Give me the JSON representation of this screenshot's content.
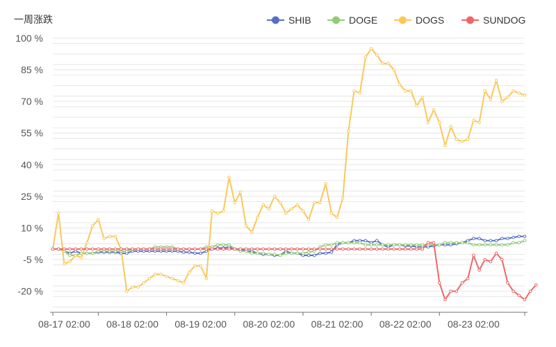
{
  "chart_data": {
    "type": "line",
    "y_axis_label": "一周涨跌",
    "y_ticks": [
      {
        "value": 100,
        "label": "100 %"
      },
      {
        "value": 85,
        "label": "85 %"
      },
      {
        "value": 70,
        "label": "70 %"
      },
      {
        "value": 55,
        "label": "55 %"
      },
      {
        "value": 40,
        "label": "40 %"
      },
      {
        "value": 25,
        "label": "25 %"
      },
      {
        "value": 10,
        "label": "10 %"
      },
      {
        "value": -5,
        "label": "-5 %"
      },
      {
        "value": -20,
        "label": "-20 %"
      }
    ],
    "ylim": [
      -30,
      100
    ],
    "x_tick_labels": [
      "08-17 02:00",
      "08-18 02:00",
      "08-19 02:00",
      "08-20 02:00",
      "08-21 02:00",
      "08-22 02:00",
      "08-23 02:00"
    ],
    "x_tick_index": [
      2,
      14,
      26,
      38,
      50,
      62,
      74
    ],
    "x_boundary_index": [
      8,
      20,
      32,
      44,
      56,
      68
    ],
    "point_count": 84,
    "grid": true,
    "legend_position": "top-right",
    "series": [
      {
        "name": "SHIB",
        "color": "#5470c6",
        "values": [
          0,
          0,
          -1,
          -2,
          -1,
          -2,
          -2,
          -2,
          -1.5,
          -1.5,
          -1.5,
          -1.5,
          -2,
          -2,
          -1,
          -1,
          -1,
          -1,
          -1,
          -1,
          -1,
          -1,
          -1,
          -1.5,
          -1.5,
          -2,
          -2,
          -1,
          0,
          0.5,
          0.5,
          1,
          0,
          0,
          -1,
          -1,
          -2,
          -2.5,
          -2.5,
          -3,
          -3,
          -1,
          -2,
          -2,
          -3,
          -3,
          -3,
          -2,
          -2,
          -1.5,
          2,
          3,
          3,
          4,
          4,
          4,
          3,
          4,
          2,
          1,
          2,
          2,
          1.5,
          1.5,
          1,
          1,
          1,
          1.5,
          2,
          2,
          2,
          2.5,
          3,
          4,
          5,
          5,
          4,
          4,
          4,
          5,
          5,
          5.5,
          6,
          6
        ]
      },
      {
        "name": "DOGE",
        "color": "#91cc75",
        "values": [
          0,
          0,
          -1,
          -3,
          -3,
          -2,
          -2,
          -2,
          -1,
          -1,
          -1,
          -1,
          -1,
          -1,
          0,
          0,
          0,
          0,
          1,
          1,
          1,
          1,
          0,
          0,
          0,
          0,
          0,
          1,
          1,
          2,
          2,
          2,
          0,
          -1,
          -1,
          -2,
          -2,
          -2,
          -2.5,
          -2.5,
          -3,
          -2,
          -2,
          -2,
          -2,
          -1.5,
          -1,
          1,
          2,
          2,
          3,
          3,
          3,
          3,
          3,
          2,
          2,
          2,
          2,
          2,
          2,
          2,
          2,
          2,
          2,
          2,
          2,
          2,
          2,
          3,
          3,
          3,
          3,
          3,
          2,
          2,
          2,
          2,
          2,
          2,
          2,
          3,
          3,
          4
        ]
      },
      {
        "name": "DOGS",
        "color": "#fac858",
        "values": [
          0,
          17,
          -7,
          -6,
          -3,
          -4,
          3,
          11,
          14,
          5,
          6,
          6,
          0,
          -20,
          -18,
          -18,
          -16,
          -14,
          -12,
          -12,
          -13,
          -14,
          -15,
          -16,
          -11,
          -8,
          -8,
          -14,
          18,
          17,
          18,
          34,
          22,
          27,
          11,
          8,
          15,
          21,
          19,
          25,
          22,
          17,
          19,
          21,
          18,
          14,
          22,
          22,
          31,
          17,
          15,
          24,
          56,
          75,
          74,
          91,
          95,
          92,
          88,
          88,
          85,
          78,
          75,
          75,
          68,
          72,
          60,
          66,
          60,
          49,
          58,
          52,
          51,
          52,
          61,
          60,
          75,
          71,
          80,
          70,
          72,
          75,
          74,
          73
        ]
      },
      {
        "name": "SUNDOG",
        "color": "#ee6666",
        "values": [
          0,
          0,
          0,
          0,
          0,
          0,
          0,
          0,
          0,
          0,
          0,
          0,
          0,
          0,
          0,
          0,
          0,
          0,
          0,
          0,
          0,
          0,
          0,
          0,
          0,
          0,
          0,
          0,
          0,
          0,
          0,
          0,
          0,
          0,
          0,
          0,
          0,
          0,
          0,
          0,
          0,
          0,
          0,
          0,
          0,
          0,
          0,
          0,
          0,
          0,
          0,
          0,
          0,
          0,
          0,
          0,
          0,
          0,
          0,
          0,
          0,
          0,
          0,
          0,
          0,
          0,
          3,
          3,
          -16,
          -24,
          -20,
          -20,
          -16,
          -14,
          -3,
          -10,
          -5,
          -6,
          -2,
          -5,
          -16,
          -20,
          -22,
          -24,
          -20,
          -17
        ]
      }
    ]
  }
}
